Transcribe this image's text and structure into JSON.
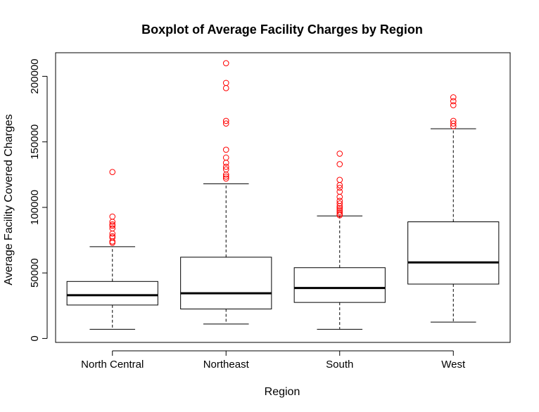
{
  "chart_data": {
    "type": "boxplot",
    "title": "Boxplot of Average Facility Charges by Region",
    "xlabel": "Region",
    "ylabel": "Average Facility Covered Charges",
    "ylim": [
      -3000,
      218000
    ],
    "yticks": [
      0,
      50000,
      100000,
      150000,
      200000
    ],
    "ytick_labels": [
      "0",
      "50000",
      "100000",
      "150000",
      "200000"
    ],
    "grid": false,
    "legend": "none",
    "colors": {
      "box": "#000000",
      "median": "#000000",
      "outlier": "#ff0000"
    },
    "categories": [
      "North Central",
      "Northeast",
      "South",
      "West"
    ],
    "boxes": [
      {
        "label": "North Central",
        "whisker_low": 7000,
        "q1": 25500,
        "median": 33000,
        "q3": 43500,
        "whisker_high": 70000,
        "outliers": [
          73000,
          74000,
          77000,
          78000,
          80000,
          84000,
          86000,
          87000,
          89000,
          93000,
          127000
        ]
      },
      {
        "label": "Northeast",
        "whisker_low": 11000,
        "q1": 22500,
        "median": 34500,
        "q3": 62000,
        "whisker_high": 118000,
        "outliers": [
          122000,
          123500,
          125000,
          129000,
          131000,
          134000,
          138000,
          144000,
          164000,
          166000,
          191000,
          195000,
          210000
        ]
      },
      {
        "label": "South",
        "whisker_low": 7000,
        "q1": 27500,
        "median": 38500,
        "q3": 54000,
        "whisker_high": 93500,
        "outliers": [
          94000,
          95000,
          96500,
          98000,
          99500,
          101000,
          103000,
          105000,
          108000,
          112000,
          115000,
          117000,
          121000,
          133000,
          141000
        ]
      },
      {
        "label": "West",
        "whisker_low": 12500,
        "q1": 41500,
        "median": 58000,
        "q3": 89000,
        "whisker_high": 160000,
        "outliers": [
          162000,
          164000,
          166000,
          178000,
          181000,
          184000
        ]
      }
    ]
  }
}
